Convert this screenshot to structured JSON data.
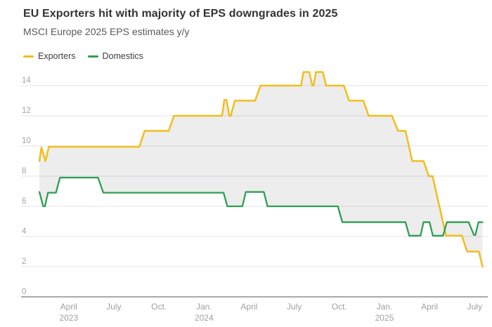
{
  "header": {
    "title": "EU Exporters hit with majority of EPS downgrades in 2025",
    "subtitle": "MSCI Europe 2025 EPS estimates y/y"
  },
  "chart_data": {
    "type": "line",
    "title": "EU Exporters hit with majority of EPS downgrades in 2025",
    "subtitle": "MSCI Europe 2025 EPS estimates y/y",
    "style": "stepped line chart, shaded band between the two series",
    "x_unit": "months since Jan 2023 (fractional = intra-month position)",
    "x_range_months": [
      1.0,
      30.55
    ],
    "ylim": [
      0,
      15
    ],
    "grid": "horizontal only",
    "legend_position": "top-left",
    "colors": {
      "exporters": "#F1BE1C",
      "domestics": "#2F9E52",
      "band_fill": "rgba(0,0,0,0.072)",
      "gridline": "#E3E3E3",
      "zero_axis": "#8d8d8d",
      "tick_text": "#a0a0a0"
    },
    "y_axis": {
      "ticks": [
        0,
        2,
        4,
        6,
        8,
        10,
        12,
        14
      ]
    },
    "x_axis": {
      "ticks": [
        {
          "label": "April",
          "sub": "2023",
          "month": 3
        },
        {
          "label": "July",
          "month": 6
        },
        {
          "label": "Oct.",
          "month": 9
        },
        {
          "label": "Jan.",
          "sub": "2024",
          "month": 12
        },
        {
          "label": "April",
          "month": 15
        },
        {
          "label": "July",
          "month": 18
        },
        {
          "label": "Oct.",
          "month": 21
        },
        {
          "label": "Jan.",
          "sub": "2025",
          "month": 24
        },
        {
          "label": "April",
          "month": 27
        },
        {
          "label": "July",
          "month": 30
        }
      ]
    },
    "series": [
      {
        "name": "Exporters",
        "color": "#F1BE1C",
        "points": [
          [
            1.05,
            9.0
          ],
          [
            1.18,
            9.9
          ],
          [
            1.45,
            9.0
          ],
          [
            1.68,
            9.95
          ],
          [
            7.7,
            9.95
          ],
          [
            8.05,
            11.0
          ],
          [
            9.65,
            11.0
          ],
          [
            10.0,
            12.0
          ],
          [
            13.2,
            12.0
          ],
          [
            13.35,
            13.05
          ],
          [
            13.5,
            13.05
          ],
          [
            13.68,
            12.0
          ],
          [
            13.78,
            12.0
          ],
          [
            14.05,
            13.0
          ],
          [
            15.4,
            13.0
          ],
          [
            15.75,
            14.0
          ],
          [
            18.45,
            14.0
          ],
          [
            18.62,
            14.9
          ],
          [
            19.0,
            14.9
          ],
          [
            19.2,
            14.0
          ],
          [
            19.28,
            14.0
          ],
          [
            19.45,
            14.9
          ],
          [
            19.9,
            14.9
          ],
          [
            20.12,
            14.0
          ],
          [
            21.3,
            14.0
          ],
          [
            21.65,
            13.0
          ],
          [
            22.6,
            13.0
          ],
          [
            22.95,
            12.0
          ],
          [
            24.5,
            12.0
          ],
          [
            24.9,
            11.0
          ],
          [
            25.4,
            11.0
          ],
          [
            25.85,
            9.0
          ],
          [
            26.6,
            9.0
          ],
          [
            26.95,
            8.0
          ],
          [
            27.2,
            8.0
          ],
          [
            28.1,
            4.05
          ],
          [
            29.15,
            4.05
          ],
          [
            29.5,
            3.0
          ],
          [
            30.28,
            3.0
          ],
          [
            30.52,
            2.0
          ]
        ]
      },
      {
        "name": "Domestics",
        "color": "#2F9E52",
        "points": [
          [
            1.05,
            6.95
          ],
          [
            1.3,
            6.0
          ],
          [
            1.42,
            6.0
          ],
          [
            1.62,
            6.9
          ],
          [
            2.15,
            6.9
          ],
          [
            2.42,
            7.9
          ],
          [
            4.95,
            7.9
          ],
          [
            5.3,
            6.9
          ],
          [
            13.3,
            6.9
          ],
          [
            13.55,
            6.0
          ],
          [
            14.55,
            6.0
          ],
          [
            14.78,
            6.95
          ],
          [
            15.98,
            6.95
          ],
          [
            16.22,
            6.0
          ],
          [
            20.9,
            6.0
          ],
          [
            21.2,
            4.95
          ],
          [
            25.4,
            4.95
          ],
          [
            25.65,
            4.05
          ],
          [
            26.4,
            4.05
          ],
          [
            26.6,
            4.95
          ],
          [
            27.0,
            4.95
          ],
          [
            27.22,
            4.05
          ],
          [
            27.9,
            4.05
          ],
          [
            28.15,
            4.95
          ],
          [
            29.6,
            4.95
          ],
          [
            29.95,
            4.1
          ],
          [
            30.05,
            4.1
          ],
          [
            30.25,
            4.95
          ],
          [
            30.52,
            4.95
          ]
        ]
      }
    ]
  }
}
